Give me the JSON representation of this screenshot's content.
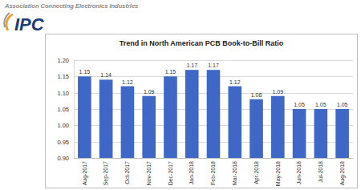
{
  "logo": {
    "tagline": "Association Connecting Electronics Industries",
    "text": "IPC"
  },
  "chart_data": {
    "type": "bar",
    "title": "Trend in North American PCB Book-to-Bill Ratio",
    "categories": [
      "Aug-2017",
      "Sep-2017",
      "Oct-2017",
      "Nov-2017",
      "Dec-2017",
      "Jan-2018",
      "Feb-2018",
      "Mar-2018",
      "Apr-2018",
      "May-2018",
      "Jun-2018",
      "Jul-2018",
      "Aug-2018"
    ],
    "values": [
      1.15,
      1.14,
      1.12,
      1.09,
      1.15,
      1.17,
      1.17,
      1.12,
      1.08,
      1.09,
      1.05,
      1.05,
      1.05
    ],
    "color": "#3f67c6",
    "ylim": [
      0.9,
      1.2
    ],
    "yticks": [
      {
        "value": 0.9,
        "label": "0.90"
      },
      0.95,
      {
        "value": 1.0,
        "label": "1.00"
      },
      1.05,
      {
        "value": 1.1,
        "label": "1.10"
      },
      1.15,
      {
        "value": 1.2,
        "label": "1.20"
      }
    ],
    "grid": true,
    "data_labels": true
  }
}
